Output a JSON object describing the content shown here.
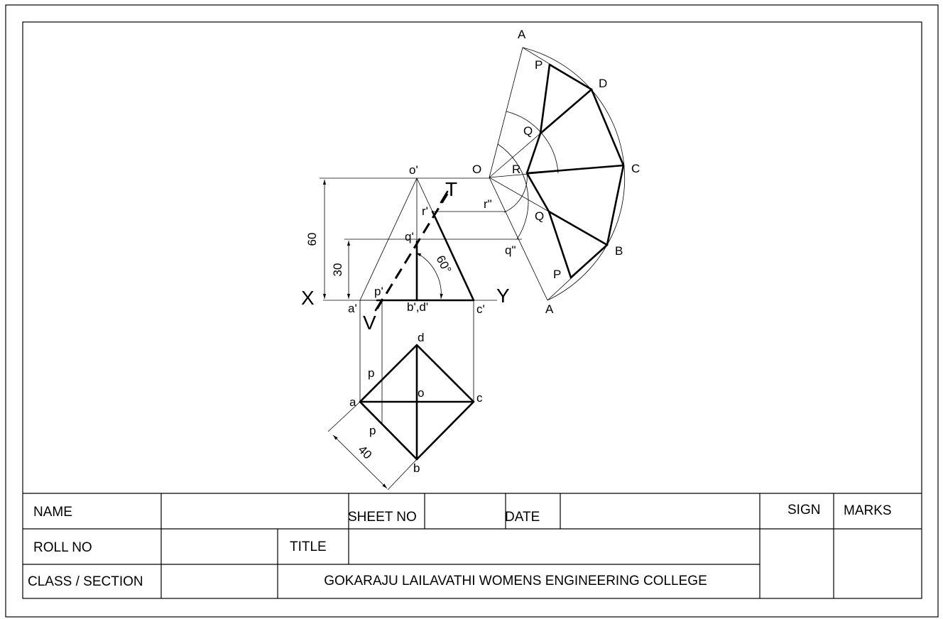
{
  "drawing": {
    "labels": {
      "o_prime": "o'",
      "O": "O",
      "T": "T",
      "r_prime": "r'",
      "r_dd": "r\"",
      "q_prime": "q'",
      "q_dd": "q\"",
      "p_prime": "p'",
      "a_prime": "a'",
      "bd_prime": "b',d'",
      "c_prime": "c'",
      "X": "X",
      "Y": "Y",
      "V": "V",
      "dim_60": "60",
      "dim_30": "30",
      "dim_40": "40",
      "angle_60": "60°",
      "plan_d": "d",
      "plan_a": "a",
      "plan_o": "o",
      "plan_c": "c",
      "plan_b": "b",
      "plan_p_top": "p",
      "plan_p_bottom": "p",
      "dev_A_top": "A",
      "dev_P_top": "P",
      "dev_D": "D",
      "dev_Q_top": "Q",
      "dev_R": "R",
      "dev_C": "C",
      "dev_Q_bottom": "Q",
      "dev_B": "B",
      "dev_P_bottom": "P",
      "dev_A_bottom": "A"
    }
  },
  "title_block": {
    "name_label": "NAME",
    "sheet_no_label": "SHEET NO",
    "date_label": "DATE",
    "sign_label": "SIGN",
    "marks_label": "MARKS",
    "roll_no_label": "ROLL NO",
    "title_label": "TITLE",
    "class_section_label": "CLASS / SECTION",
    "college_name": "GOKARAJU  LAILAVATHI  WOMENS  ENGINEERING  COLLEGE"
  }
}
